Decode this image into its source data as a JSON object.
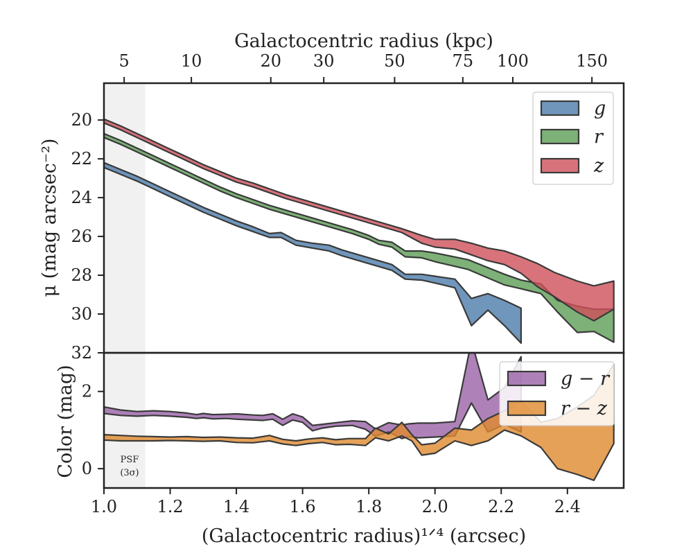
{
  "chart_data": [
    {
      "type": "area",
      "panel": "surface-brightness",
      "ylabel": "μ (mag arcsec⁻²)",
      "ylim": [
        32,
        18.1
      ],
      "y_inverted": true,
      "xlim": [
        1.0,
        2.57
      ],
      "yticks": [
        "20",
        "22",
        "24",
        "26",
        "28",
        "30",
        "32"
      ],
      "top_axis": {
        "label": "Galactocentric radius (kpc)",
        "ticks": [
          "5",
          "10",
          "20",
          "30",
          "50",
          "75",
          "100",
          "150"
        ],
        "tick_x": [
          1.061,
          1.264,
          1.504,
          1.664,
          1.878,
          2.084,
          2.235,
          2.474
        ]
      },
      "shaded_region": {
        "x": [
          1.0,
          1.125
        ],
        "label": "PSF",
        "label2": "(3σ)"
      },
      "legend": {
        "position": "upper-right",
        "entries": [
          "g",
          "r",
          "z"
        ]
      },
      "series": [
        {
          "name": "g",
          "color": "#4c7cab",
          "x": [
            1.0,
            1.05,
            1.1,
            1.15,
            1.2,
            1.25,
            1.3,
            1.35,
            1.4,
            1.45,
            1.5,
            1.535,
            1.58,
            1.63,
            1.68,
            1.72,
            1.77,
            1.82,
            1.87,
            1.91,
            1.96,
            2.0,
            2.06,
            2.11,
            2.16,
            2.21,
            2.26
          ],
          "lower": [
            22.2,
            22.55,
            22.9,
            23.3,
            23.7,
            24.1,
            24.5,
            24.85,
            25.2,
            25.5,
            25.85,
            25.8,
            26.2,
            26.35,
            26.45,
            26.7,
            26.95,
            27.2,
            27.45,
            27.95,
            27.95,
            28.05,
            28.2,
            29.2,
            28.95,
            29.3,
            29.7
          ],
          "upper": [
            22.45,
            22.8,
            23.15,
            23.55,
            23.95,
            24.35,
            24.75,
            25.1,
            25.45,
            25.75,
            26.05,
            26.05,
            26.45,
            26.6,
            26.75,
            27.0,
            27.25,
            27.5,
            27.75,
            28.2,
            28.25,
            28.4,
            28.65,
            30.6,
            29.8,
            30.6,
            31.5
          ]
        },
        {
          "name": "r",
          "color": "#5c9e55",
          "x": [
            1.0,
            1.05,
            1.1,
            1.15,
            1.2,
            1.25,
            1.3,
            1.35,
            1.4,
            1.45,
            1.5,
            1.55,
            1.6,
            1.65,
            1.7,
            1.75,
            1.8,
            1.83,
            1.87,
            1.91,
            1.96,
            2.0,
            2.1,
            2.21,
            2.26,
            2.32,
            2.37,
            2.43,
            2.48,
            2.54
          ],
          "lower": [
            20.7,
            21.05,
            21.45,
            21.85,
            22.25,
            22.65,
            23.05,
            23.45,
            23.8,
            24.1,
            24.4,
            24.65,
            24.9,
            25.15,
            25.4,
            25.65,
            25.95,
            26.2,
            26.3,
            26.75,
            26.75,
            26.85,
            27.2,
            27.95,
            28.25,
            28.45,
            29.3,
            29.6,
            29.75,
            29.75
          ],
          "upper": [
            20.9,
            21.25,
            21.65,
            22.05,
            22.45,
            22.85,
            23.25,
            23.65,
            24.0,
            24.3,
            24.6,
            24.85,
            25.1,
            25.35,
            25.6,
            25.85,
            26.15,
            26.4,
            26.55,
            27.05,
            27.1,
            27.3,
            27.7,
            28.5,
            28.7,
            28.95,
            29.9,
            30.95,
            30.9,
            31.45
          ]
        },
        {
          "name": "z",
          "color": "#d0505a",
          "x": [
            1.0,
            1.05,
            1.1,
            1.15,
            1.2,
            1.25,
            1.3,
            1.35,
            1.4,
            1.45,
            1.5,
            1.55,
            1.6,
            1.65,
            1.7,
            1.75,
            1.8,
            1.85,
            1.9,
            1.96,
            2.0,
            2.06,
            2.11,
            2.16,
            2.21,
            2.26,
            2.31,
            2.36,
            2.43,
            2.48,
            2.54
          ],
          "lower": [
            19.95,
            20.3,
            20.7,
            21.1,
            21.5,
            21.9,
            22.3,
            22.65,
            23.0,
            23.25,
            23.55,
            23.85,
            24.1,
            24.35,
            24.6,
            24.85,
            25.1,
            25.35,
            25.6,
            25.95,
            26.15,
            26.15,
            26.35,
            26.6,
            26.75,
            27.05,
            27.4,
            27.85,
            28.3,
            28.55,
            28.3
          ],
          "upper": [
            20.15,
            20.5,
            20.9,
            21.3,
            21.7,
            22.1,
            22.5,
            22.85,
            23.2,
            23.45,
            23.75,
            24.05,
            24.3,
            24.55,
            24.8,
            25.05,
            25.3,
            25.55,
            25.8,
            26.35,
            26.55,
            26.65,
            26.95,
            27.25,
            27.45,
            27.9,
            28.6,
            29.1,
            29.9,
            30.35,
            29.75
          ]
        }
      ]
    },
    {
      "type": "area",
      "panel": "color",
      "xlabel": "(Galactocentric radius)¹ᐟ⁴ (arcsec)",
      "ylabel": "Color (mag)",
      "ylim": [
        -0.5,
        3.0
      ],
      "xlim": [
        1.0,
        2.57
      ],
      "yticks": [
        "0",
        "2"
      ],
      "xticks": [
        "1.0",
        "1.2",
        "1.4",
        "1.6",
        "1.8",
        "2.0",
        "2.2",
        "2.4"
      ],
      "legend": {
        "position": "upper-right",
        "entries": [
          "g − r",
          "r − z"
        ]
      },
      "series": [
        {
          "name": "g − r",
          "color": "#9a63a8",
          "x": [
            1.0,
            1.05,
            1.1,
            1.15,
            1.2,
            1.25,
            1.28,
            1.3,
            1.33,
            1.37,
            1.4,
            1.45,
            1.48,
            1.51,
            1.54,
            1.57,
            1.6,
            1.63,
            1.66,
            1.7,
            1.75,
            1.79,
            1.82,
            1.86,
            1.9,
            1.92,
            1.95,
            2.0,
            2.06,
            2.11,
            2.16,
            2.21,
            2.26
          ],
          "lower": [
            1.43,
            1.38,
            1.36,
            1.38,
            1.36,
            1.33,
            1.3,
            1.32,
            1.29,
            1.3,
            1.28,
            1.26,
            1.25,
            1.28,
            1.12,
            1.26,
            1.2,
            0.98,
            1.05,
            1.1,
            1.12,
            1.02,
            0.84,
            0.95,
            0.78,
            0.83,
            0.8,
            0.82,
            0.85,
            1.7,
            0.95,
            1.15,
            0.95
          ],
          "upper": [
            1.6,
            1.52,
            1.48,
            1.5,
            1.48,
            1.44,
            1.4,
            1.43,
            1.4,
            1.41,
            1.42,
            1.39,
            1.38,
            1.42,
            1.28,
            1.42,
            1.34,
            1.12,
            1.15,
            1.19,
            1.24,
            1.22,
            1.03,
            1.19,
            1.13,
            1.16,
            1.18,
            1.18,
            1.22,
            3.3,
            1.78,
            2.1,
            2.9
          ]
        },
        {
          "name": "r − z",
          "color": "#e08a2e",
          "x": [
            1.0,
            1.05,
            1.1,
            1.15,
            1.2,
            1.25,
            1.3,
            1.35,
            1.4,
            1.45,
            1.5,
            1.54,
            1.58,
            1.62,
            1.66,
            1.7,
            1.74,
            1.79,
            1.82,
            1.86,
            1.9,
            1.93,
            1.96,
            2.0,
            2.06,
            2.11,
            2.16,
            2.21,
            2.26,
            2.32,
            2.37,
            2.43,
            2.48,
            2.54
          ],
          "lower": [
            0.74,
            0.72,
            0.72,
            0.72,
            0.73,
            0.72,
            0.71,
            0.72,
            0.68,
            0.67,
            0.72,
            0.64,
            0.6,
            0.65,
            0.68,
            0.62,
            0.63,
            0.6,
            0.8,
            0.72,
            0.85,
            0.72,
            0.35,
            0.4,
            0.72,
            0.6,
            0.72,
            1.0,
            0.85,
            0.55,
            0.0,
            -0.15,
            -0.3,
            0.65
          ],
          "upper": [
            0.88,
            0.86,
            0.84,
            0.83,
            0.82,
            0.83,
            0.81,
            0.82,
            0.8,
            0.79,
            0.86,
            0.76,
            0.72,
            0.77,
            0.8,
            0.75,
            0.78,
            0.78,
            1.05,
            0.9,
            1.2,
            0.88,
            0.62,
            0.66,
            1.05,
            1.0,
            1.3,
            1.5,
            1.75,
            1.2,
            1.3,
            1.6,
            1.9,
            2.7
          ]
        }
      ]
    }
  ]
}
